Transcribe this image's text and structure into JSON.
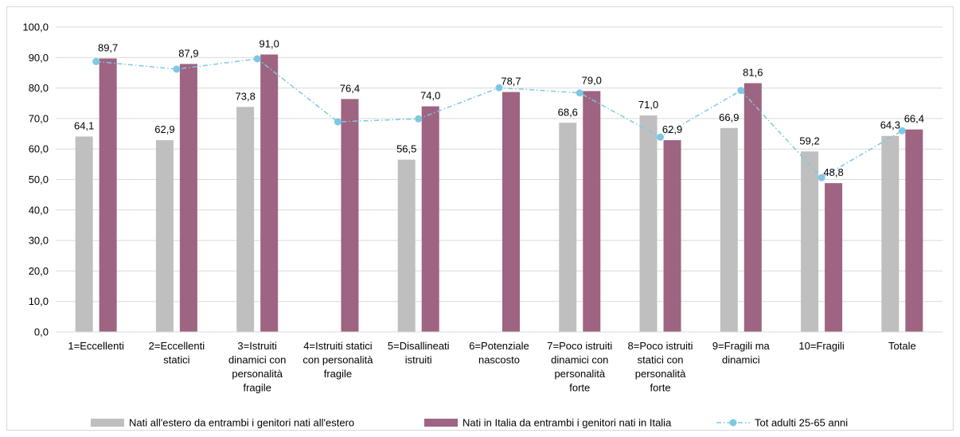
{
  "chart_data": {
    "type": "bar",
    "categories": [
      [
        "1=Eccellenti"
      ],
      [
        "2=Eccellenti",
        "statici"
      ],
      [
        "3=Istruiti",
        "dinamici con",
        "personalità",
        "fragile"
      ],
      [
        "4=Istruiti statici",
        "con personalità",
        "fragile"
      ],
      [
        "5=Disallineati",
        "istruiti"
      ],
      [
        "6=Potenziale",
        "nascosto"
      ],
      [
        "7=Poco istruiti",
        "dinamici con",
        "personalità",
        "forte"
      ],
      [
        "8=Poco istruiti",
        "statici con",
        "personalità",
        "forte"
      ],
      [
        "9=Fragili ma",
        "dinamici"
      ],
      [
        "10=Fragili"
      ],
      [
        "Totale"
      ]
    ],
    "series": [
      {
        "name": "Nati all'estero da entrambi i genitori nati all'estero",
        "type": "bar",
        "color": "#bfbfbf",
        "values": [
          64.1,
          62.9,
          73.8,
          null,
          56.5,
          null,
          68.6,
          71.0,
          66.9,
          59.2,
          64.3
        ],
        "labels": [
          "64,1",
          "62,9",
          "73,8",
          null,
          "56,5",
          null,
          "68,6",
          "71,0",
          "66,9",
          "59,2",
          "64,3"
        ]
      },
      {
        "name": "Nati in Italia da entrambi i genitori nati in Italia",
        "type": "bar",
        "color": "#9e6482",
        "values": [
          89.7,
          87.9,
          91.0,
          76.4,
          74.0,
          78.7,
          79.0,
          62.9,
          81.6,
          48.8,
          66.4
        ],
        "labels": [
          "89,7",
          "87,9",
          "91,0",
          "76,4",
          "74,0",
          "78,7",
          "79,0",
          "62,9",
          "81,6",
          "48,8",
          "66,4"
        ]
      },
      {
        "name": "Tot adulti 25-65 anni",
        "type": "line",
        "color": "#7ec8e3",
        "values": [
          88.7,
          86.2,
          89.6,
          68.9,
          69.9,
          80.1,
          78.4,
          63.9,
          79.2,
          50.6,
          66.0
        ]
      }
    ],
    "ylim": [
      0,
      100
    ],
    "yticks": [
      "0,0",
      "10,0",
      "20,0",
      "30,0",
      "40,0",
      "50,0",
      "60,0",
      "70,0",
      "80,0",
      "90,0",
      "100,0"
    ],
    "grid": true,
    "legend_position": "bottom"
  }
}
